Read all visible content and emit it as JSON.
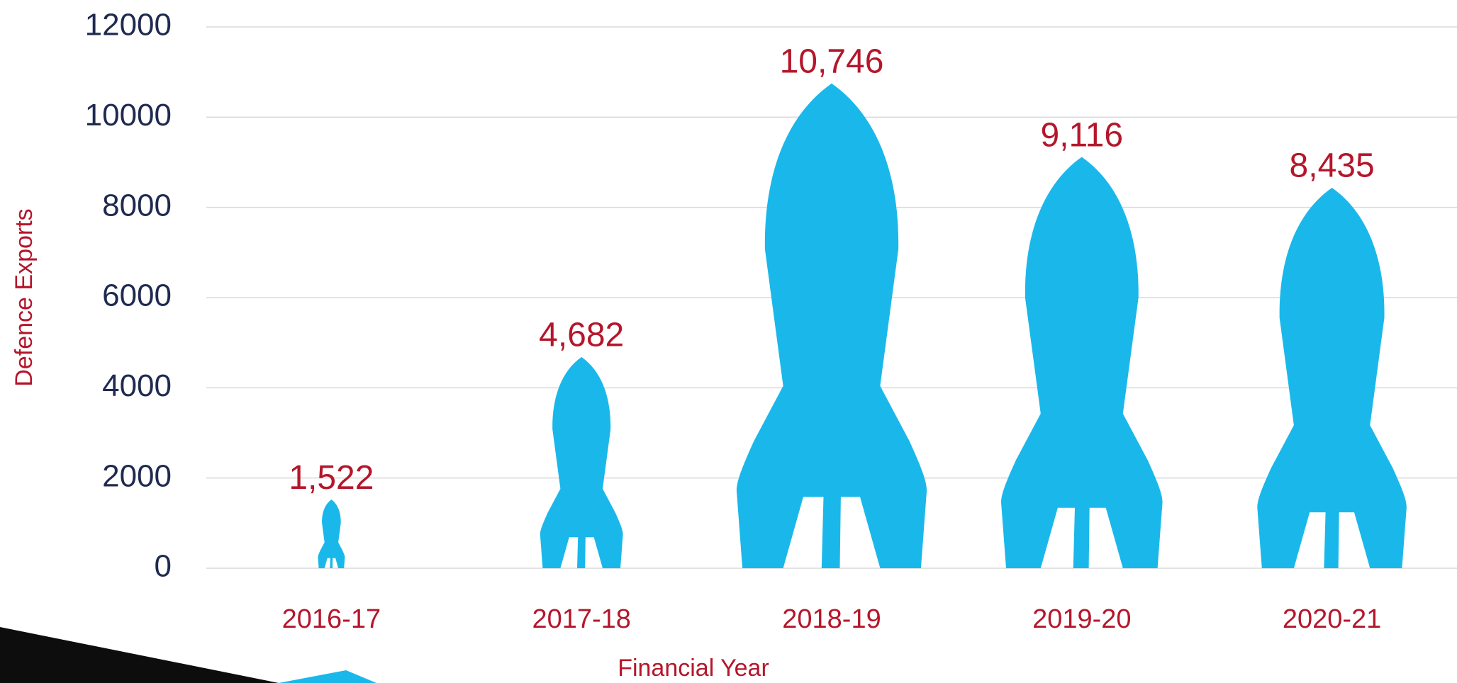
{
  "chart_data": {
    "type": "bar",
    "x_label": "Financial Year",
    "y_label": "Defence Exports",
    "categories": [
      "2016-17",
      "2017-18",
      "2018-19",
      "2019-20",
      "2020-21"
    ],
    "values": [
      1522,
      4682,
      10746,
      9116,
      8435
    ],
    "value_labels": [
      "1,522",
      "4,682",
      "10,746",
      "9,116",
      "8,435"
    ],
    "color": "#1ab8ea",
    "ylim": [
      0,
      12000
    ],
    "yticks": [
      0,
      2000,
      4000,
      6000,
      8000,
      10000,
      12000
    ],
    "grid": true
  }
}
